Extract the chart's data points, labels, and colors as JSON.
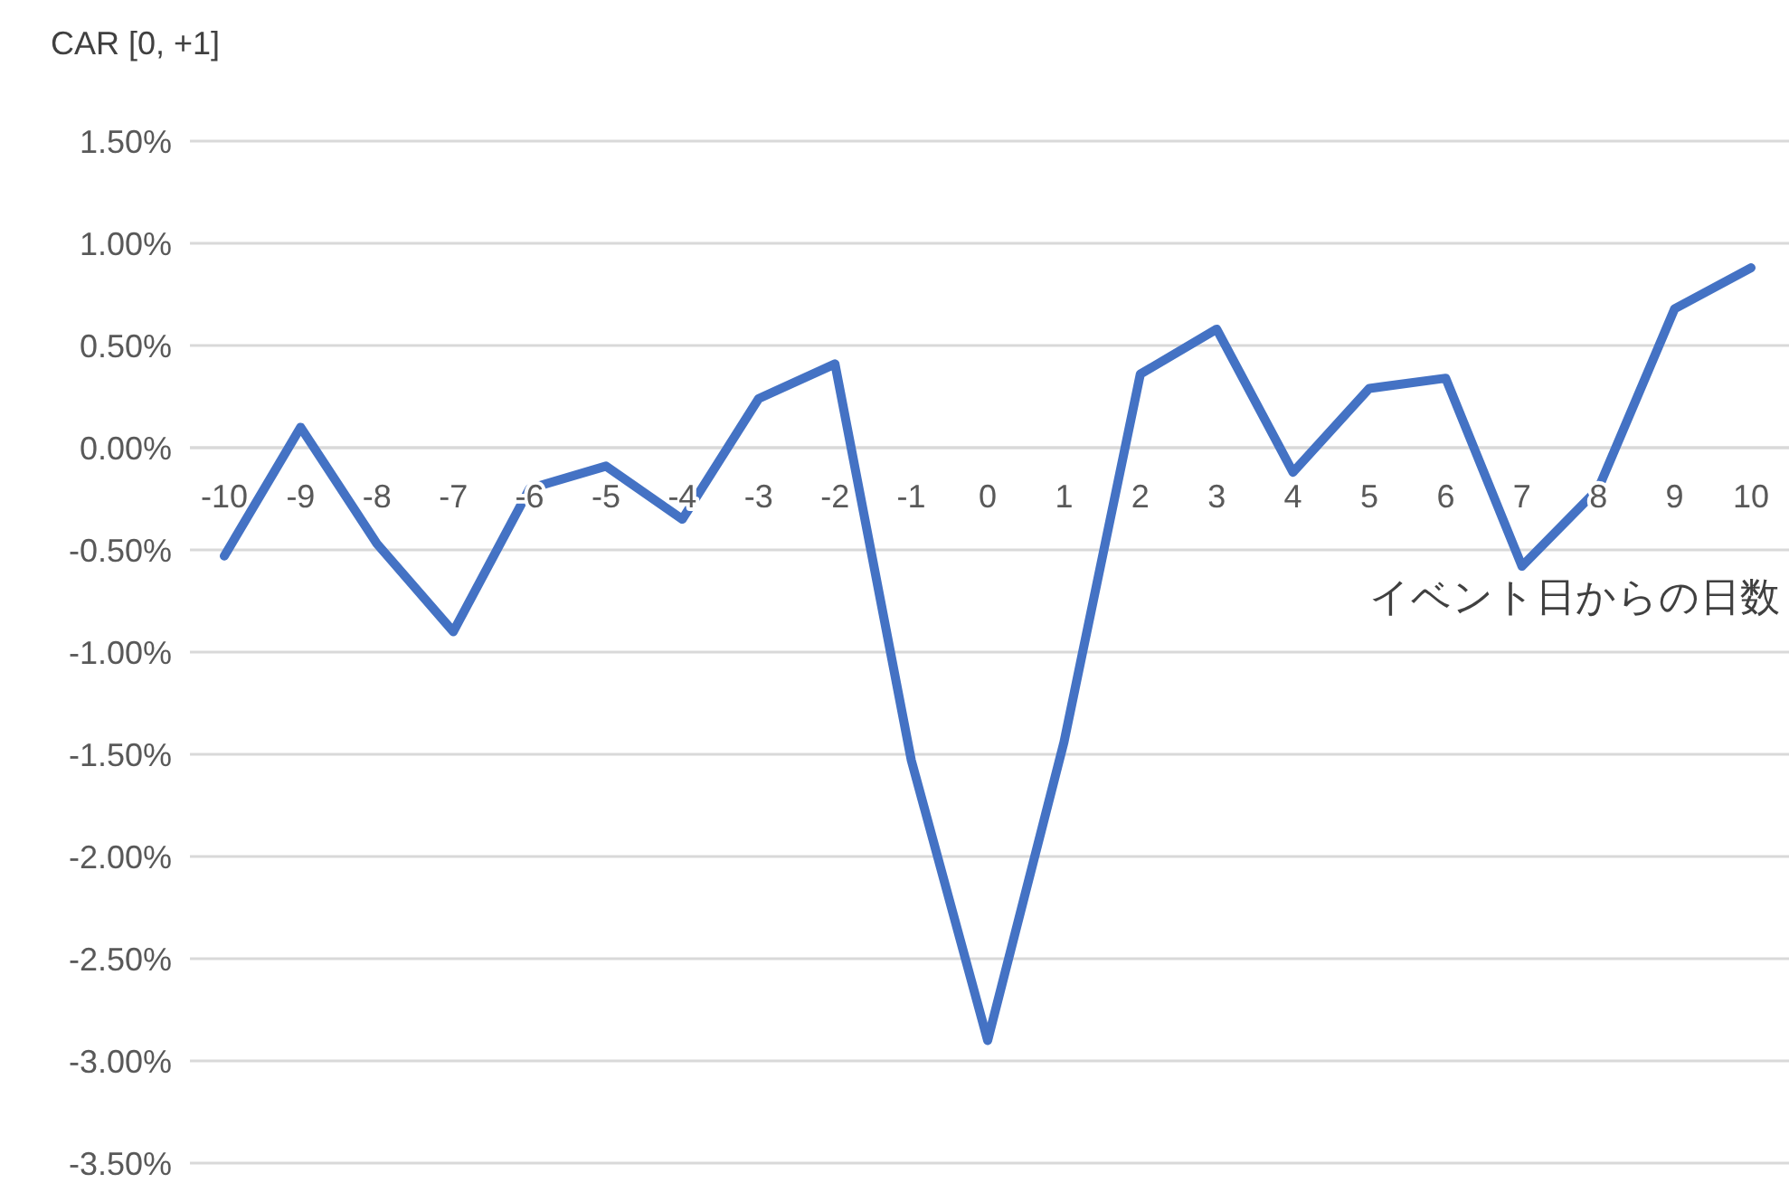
{
  "chart_data": {
    "type": "line",
    "title": "CAR [0, +1]",
    "xlabel": "イベント日からの日数",
    "categories": [
      "-10",
      "-9",
      "-8",
      "-7",
      "-6",
      "-5",
      "-4",
      "-3",
      "-2",
      "-1",
      "0",
      "1",
      "2",
      "3",
      "4",
      "5",
      "6",
      "7",
      "8",
      "9",
      "10"
    ],
    "series": [
      {
        "color": "#4472c4",
        "values": [
          -0.53,
          0.1,
          -0.47,
          -0.9,
          -0.2,
          -0.09,
          -0.35,
          0.24,
          0.41,
          -1.53,
          -2.9,
          -1.44,
          0.36,
          0.58,
          -0.12,
          0.29,
          0.34,
          -0.58,
          -0.2,
          0.68,
          0.88
        ]
      }
    ],
    "ylim": [
      -3.5,
      1.5
    ],
    "yticks": [
      {
        "value": -3.5,
        "label": "-3.50%"
      },
      {
        "value": -3,
        "label": "-3.00%"
      },
      {
        "value": -2.5,
        "label": "-2.50%"
      },
      {
        "value": -2,
        "label": "-2.00%"
      },
      {
        "value": -1.5,
        "label": "-1.50%"
      },
      {
        "value": -1,
        "label": "-1.00%"
      },
      {
        "value": -0.5,
        "label": "-0.50%"
      },
      {
        "value": 0,
        "label": "0.00%"
      },
      {
        "value": 0.5,
        "label": "0.50%"
      },
      {
        "value": 1,
        "label": "1.00%"
      },
      {
        "value": 1.5,
        "label": "1.50%"
      }
    ],
    "grid": "y",
    "marker": "none",
    "line_style": "solid"
  }
}
